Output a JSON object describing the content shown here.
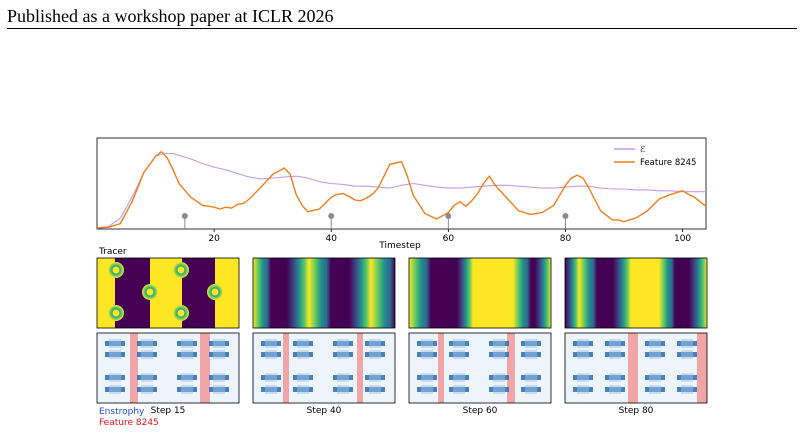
{
  "header": {
    "text": "Published as a workshop paper at ICLR 2026"
  },
  "chart_data": {
    "type": "line",
    "xlabel": "Timestep",
    "xlim": [
      0,
      104
    ],
    "ylim": [
      0,
      1
    ],
    "grid": false,
    "legend": "top-right",
    "x_ticks": [
      20,
      40,
      60,
      80,
      100
    ],
    "markers_x": [
      15,
      40,
      60,
      80
    ],
    "series": [
      {
        "name": "ℰ",
        "color": "#c69be6",
        "x": [
          0,
          2,
          4,
          6,
          8,
          10,
          11,
          12,
          13,
          14,
          16,
          18,
          20,
          22,
          24,
          26,
          28,
          30,
          32,
          34,
          36,
          38,
          40,
          42,
          44,
          46,
          48,
          50,
          52,
          54,
          56,
          58,
          60,
          62,
          64,
          66,
          68,
          70,
          72,
          74,
          76,
          78,
          80,
          82,
          84,
          86,
          88,
          90,
          92,
          94,
          96,
          98,
          100,
          102,
          104
        ],
        "y": [
          0.01,
          0.03,
          0.12,
          0.35,
          0.62,
          0.8,
          0.82,
          0.83,
          0.83,
          0.81,
          0.77,
          0.72,
          0.68,
          0.65,
          0.61,
          0.57,
          0.55,
          0.56,
          0.57,
          0.58,
          0.56,
          0.52,
          0.5,
          0.49,
          0.47,
          0.47,
          0.46,
          0.45,
          0.48,
          0.5,
          0.48,
          0.46,
          0.45,
          0.45,
          0.46,
          0.47,
          0.48,
          0.48,
          0.47,
          0.46,
          0.45,
          0.45,
          0.46,
          0.47,
          0.47,
          0.45,
          0.44,
          0.44,
          0.43,
          0.43,
          0.42,
          0.42,
          0.41,
          0.41,
          0.41
        ]
      },
      {
        "name": "Feature 8245",
        "color": "#f07f1e",
        "x": [
          0,
          2,
          4,
          6,
          8,
          10,
          11,
          12,
          13,
          14,
          16,
          18,
          20,
          21,
          22,
          23,
          24,
          25,
          26,
          28,
          30,
          32,
          33,
          34,
          35,
          36,
          38,
          40,
          41,
          42,
          43,
          44,
          45,
          46,
          47,
          48,
          50,
          52,
          53,
          54,
          56,
          58,
          60,
          61,
          62,
          63,
          64,
          65,
          66,
          67,
          68,
          70,
          72,
          74,
          76,
          78,
          80,
          81,
          82,
          83,
          84,
          86,
          88,
          89,
          90,
          92,
          94,
          96,
          98,
          100,
          101,
          102,
          104
        ],
        "y": [
          0.01,
          0.02,
          0.06,
          0.3,
          0.62,
          0.8,
          0.85,
          0.78,
          0.65,
          0.5,
          0.35,
          0.26,
          0.24,
          0.22,
          0.24,
          0.23,
          0.27,
          0.28,
          0.33,
          0.46,
          0.6,
          0.67,
          0.6,
          0.38,
          0.26,
          0.19,
          0.22,
          0.35,
          0.38,
          0.39,
          0.36,
          0.32,
          0.31,
          0.34,
          0.38,
          0.45,
          0.71,
          0.74,
          0.58,
          0.37,
          0.17,
          0.11,
          0.18,
          0.26,
          0.3,
          0.25,
          0.31,
          0.39,
          0.5,
          0.58,
          0.48,
          0.34,
          0.2,
          0.16,
          0.18,
          0.26,
          0.48,
          0.56,
          0.59,
          0.56,
          0.45,
          0.2,
          0.1,
          0.1,
          0.08,
          0.12,
          0.2,
          0.33,
          0.38,
          0.42,
          0.38,
          0.35,
          0.25
        ]
      }
    ]
  },
  "panels": {
    "row_labels": {
      "tracer": "Tracer",
      "entropy": "Enstrophy",
      "feature": "Feature 8245"
    },
    "steps": [
      "Step 15",
      "Step 40",
      "Step 60",
      "Step 80"
    ]
  }
}
